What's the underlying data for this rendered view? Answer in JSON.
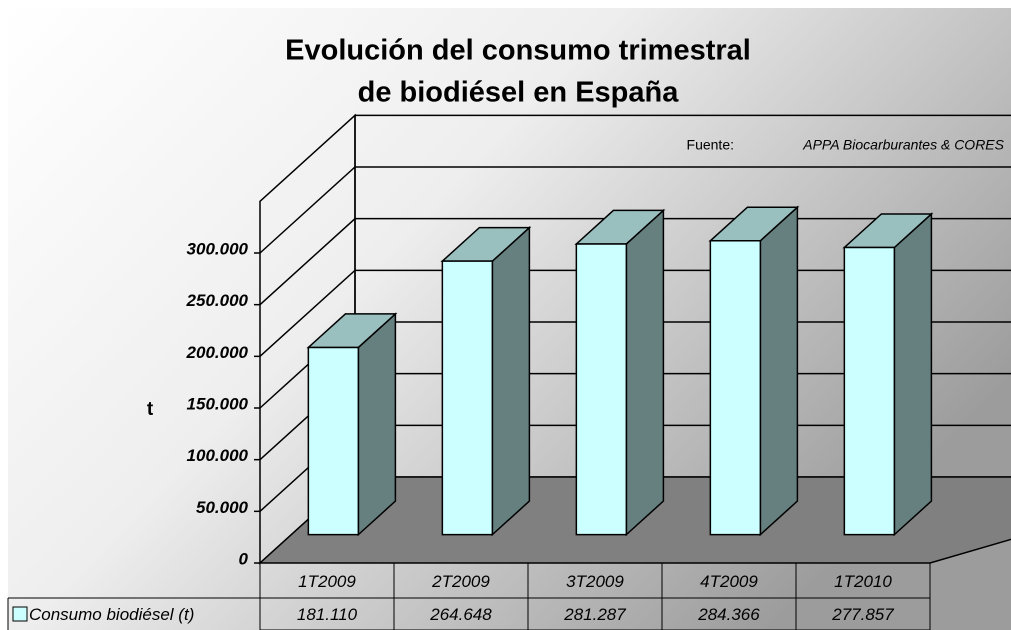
{
  "chart_data": {
    "type": "bar3d",
    "title": [
      "Evolución del consumo trimestral",
      "de biodiésel en España"
    ],
    "source_label": "Fuente:",
    "source": "APPA Biocarburantes & CORES",
    "y_label": "t",
    "categories": [
      "1T2009",
      "2T2009",
      "3T2009",
      "4T2009",
      "1T2010"
    ],
    "series": [
      {
        "name": "Consumo biodiésel (t)",
        "color": "#ccffff",
        "values": [
          181110,
          264648,
          281287,
          284366,
          277857
        ],
        "value_labels": [
          "181.110",
          "264.648",
          "281.287",
          "284.366",
          "277.857"
        ]
      }
    ],
    "ylim": [
      0,
      350000
    ],
    "yticks": [
      0,
      {
        "value": 50000,
        "label": "50.000"
      },
      {
        "value": 100000,
        "label": "100.000"
      },
      {
        "value": 150000,
        "label": "150.000"
      },
      {
        "value": 200000,
        "label": "200.000"
      },
      {
        "value": 250000,
        "label": "250.000"
      },
      {
        "value": 300000,
        "label": "300.000"
      }
    ],
    "grid": true,
    "data_table": true
  }
}
